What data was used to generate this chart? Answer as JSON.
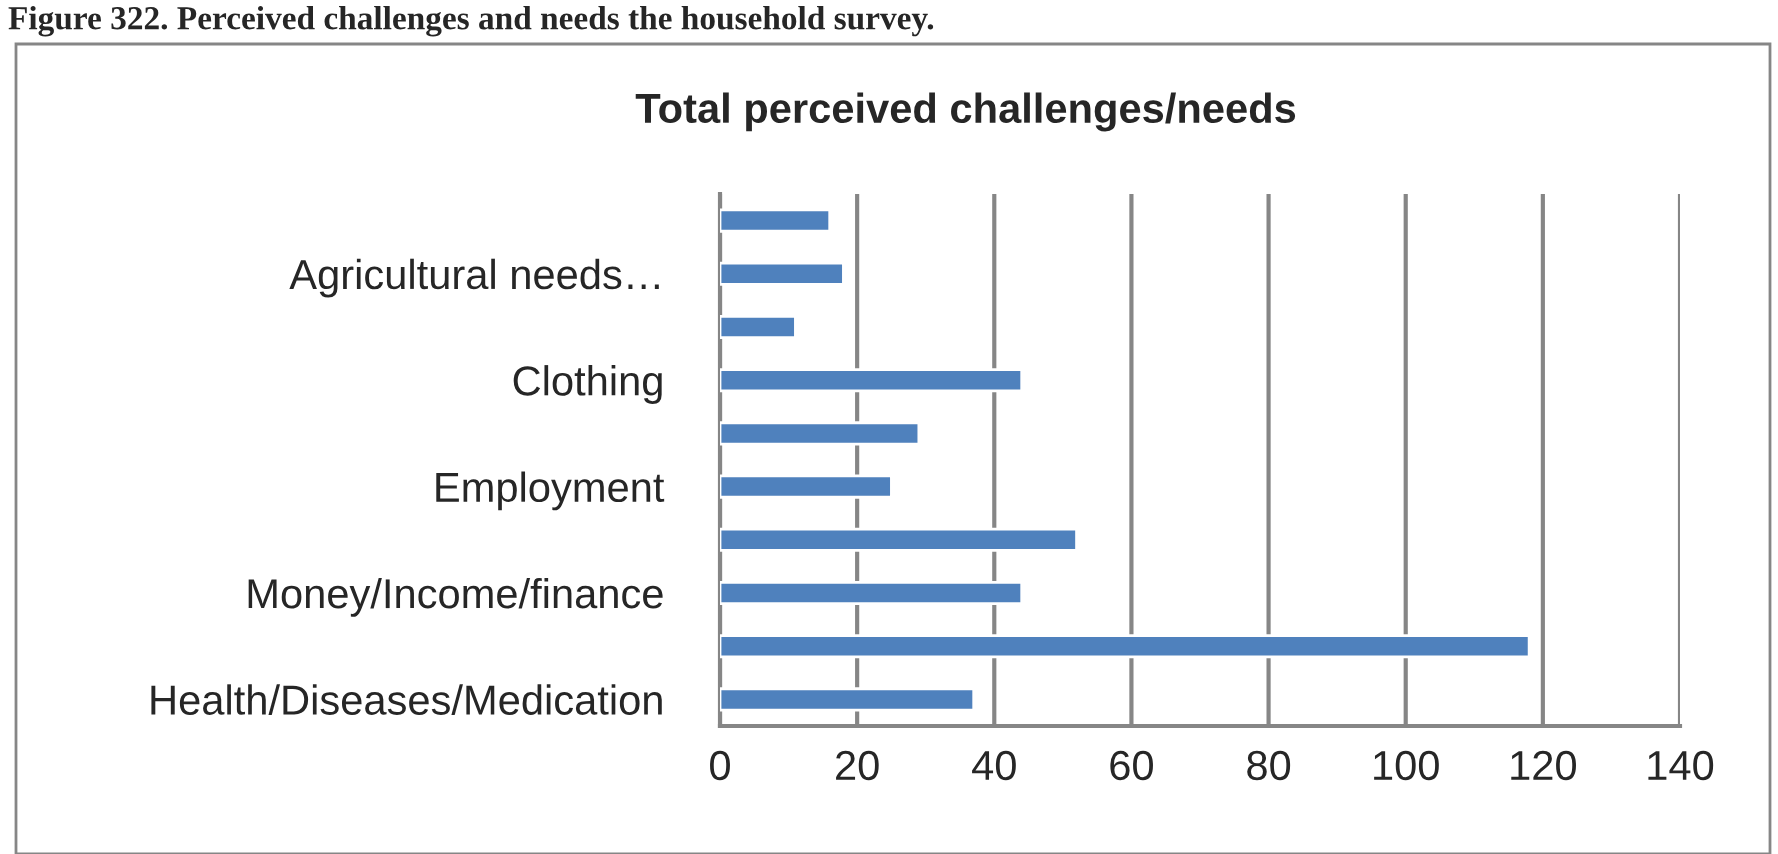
{
  "chart_data": {
    "type": "bar",
    "orientation": "horizontal",
    "title": "Total perceived challenges/needs",
    "annotations": [
      "Figure 322. Perceived challenges and needs the household survey."
    ],
    "categories": [
      null,
      "Agricultural needs…",
      null,
      "Clothing",
      null,
      "Employment",
      null,
      "Money/Income/finance",
      null,
      "Health/Diseases/Medication"
    ],
    "values": [
      16,
      18,
      11,
      44,
      29,
      25,
      52,
      44,
      118,
      37
    ],
    "color": "#4f81bd",
    "xlim": [
      0,
      140
    ],
    "xticks": [
      0,
      20,
      40,
      60,
      80,
      100,
      120,
      140
    ],
    "grid": "x",
    "legend": false
  }
}
